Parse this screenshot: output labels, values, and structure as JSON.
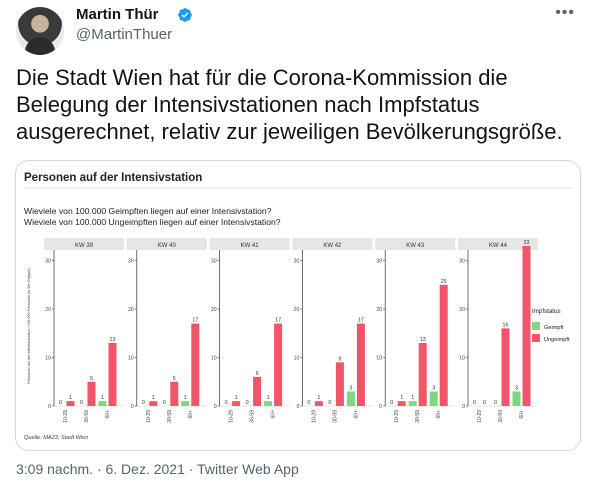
{
  "tweet": {
    "author_name": "Martin Thür",
    "handle": "@MartinThuer",
    "more_icon": "more-horizontal-icon",
    "verified_icon": "verified-badge-icon",
    "text": "Die Stadt Wien hat für die Corona-Kommission die Belegung der Intensivstationen nach Impfstatus ausgerechnet, relativ zur jeweiligen Bevölkerungsgröße.",
    "timestamp": "3:09 nachm. · 6. Dez. 2021 · Twitter Web App"
  },
  "colors": {
    "geimpft": "#7fd77f",
    "ungeimpft": "#f2556a",
    "verified": "#1d9bf0"
  },
  "chart_data": {
    "type": "bar",
    "title": "Personen auf der Intensivstation",
    "subtitle_lines": [
      "Wieviele von 100.000 Geimpften liegen auf einer Intensivstation?",
      "Wieviele von 100.000 Ungeimpften liegen auf einer Intensivstation?"
    ],
    "ylabel": "Personen auf der Intensivstation / 100.000 Personen (in der Gruppe)",
    "ylim": [
      0,
      33
    ],
    "yticks": [
      0,
      10,
      20,
      30
    ],
    "categories": [
      "10-29",
      "30-59",
      "60+"
    ],
    "legend_title": "Impfstatus",
    "legend_position": "right",
    "source": "Quelle: MA23, Stadt Wien",
    "panels": [
      {
        "label": "KW 39",
        "series": [
          {
            "name": "Geimpft",
            "values": [
              0,
              0,
              1
            ]
          },
          {
            "name": "Ungeimpft",
            "values": [
              1,
              5,
              13
            ]
          }
        ]
      },
      {
        "label": "KW 40",
        "series": [
          {
            "name": "Geimpft",
            "values": [
              0,
              0,
              1
            ]
          },
          {
            "name": "Ungeimpft",
            "values": [
              1,
              5,
              17
            ]
          }
        ]
      },
      {
        "label": "KW 41",
        "series": [
          {
            "name": "Geimpft",
            "values": [
              0,
              0,
              1
            ]
          },
          {
            "name": "Ungeimpft",
            "values": [
              1,
              6,
              17
            ]
          }
        ]
      },
      {
        "label": "KW 42",
        "series": [
          {
            "name": "Geimpft",
            "values": [
              0,
              0,
              3
            ]
          },
          {
            "name": "Ungeimpft",
            "values": [
              1,
              9,
              17
            ]
          }
        ]
      },
      {
        "label": "KW 43",
        "series": [
          {
            "name": "Geimpft",
            "values": [
              0,
              1,
              3
            ]
          },
          {
            "name": "Ungeimpft",
            "values": [
              1,
              13,
              25
            ]
          }
        ]
      },
      {
        "label": "KW 44",
        "series": [
          {
            "name": "Geimpft",
            "values": [
              0,
              0,
              3
            ]
          },
          {
            "name": "Ungeimpft",
            "values": [
              0,
              16,
              33
            ]
          }
        ]
      }
    ]
  }
}
